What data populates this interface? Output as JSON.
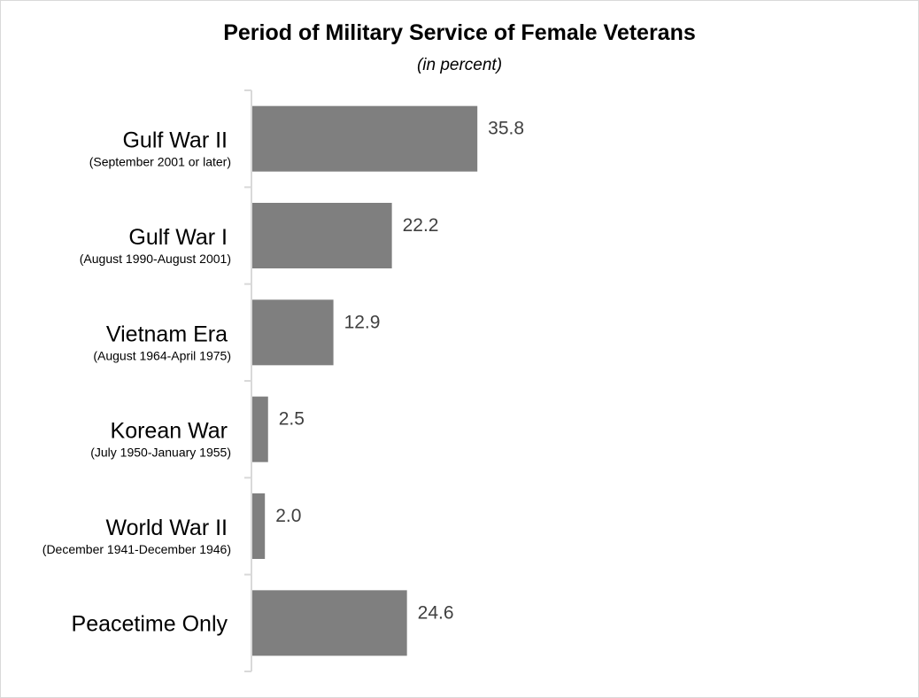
{
  "chart_data": {
    "type": "bar",
    "orientation": "horizontal",
    "title": "Period of Military Service of Female Veterans",
    "subtitle": "(in percent)",
    "categories": [
      {
        "label": "Gulf War II",
        "sublabel": "(September 2001 or later)"
      },
      {
        "label": "Gulf War I",
        "sublabel": "(August 1990-August 2001)"
      },
      {
        "label": "Vietnam Era",
        "sublabel": "(August 1964-April 1975)"
      },
      {
        "label": "Korean War",
        "sublabel": "(July 1950-January 1955)"
      },
      {
        "label": "World War II",
        "sublabel": "(December 1941-December 1946)"
      },
      {
        "label": "Peacetime Only",
        "sublabel": ""
      }
    ],
    "values": [
      35.8,
      22.2,
      12.9,
      2.5,
      2.0,
      24.6
    ],
    "value_labels": [
      "35.8",
      "22.2",
      "12.9",
      "2.5",
      "2.0",
      "24.6"
    ],
    "xlim": [
      0,
      100
    ],
    "grid": false,
    "bar_color": "#7f7f7f",
    "axis_color": "#d9d9d9",
    "label_color": "#404040"
  }
}
